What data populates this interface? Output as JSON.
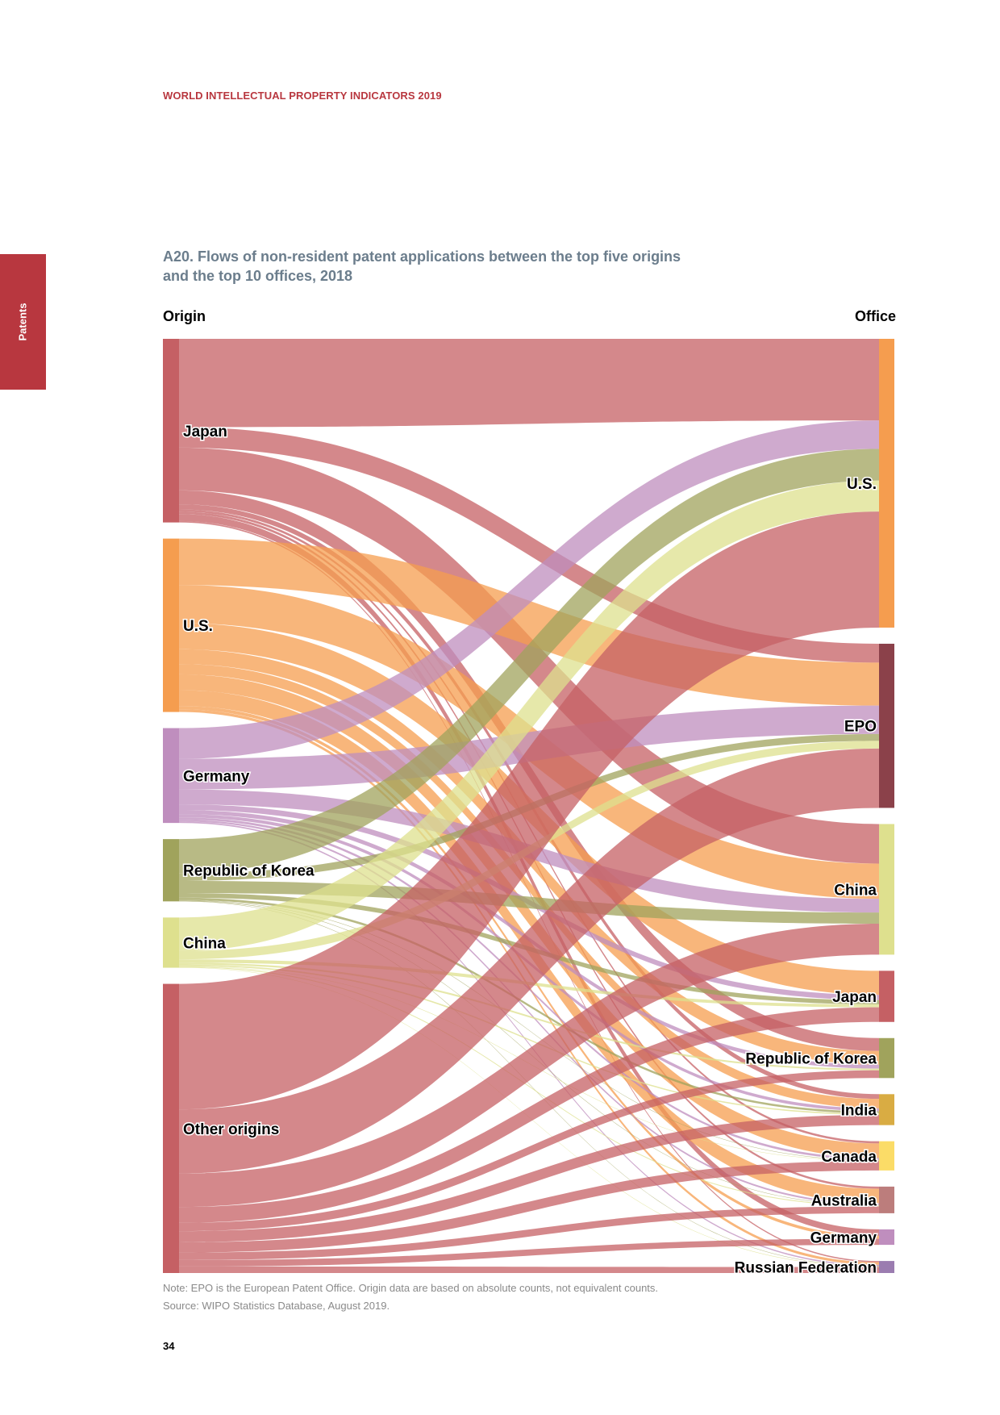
{
  "header": {
    "text": "WORLD INTELLECTUAL PROPERTY INDICATORS 2019"
  },
  "side_tab": {
    "label": "Patents"
  },
  "page_number": "34",
  "note": {
    "line1": "Note: EPO is the European Patent Office. Origin data are based on absolute counts, not equivalent counts.",
    "line2": "Source: WIPO Statistics Database, August 2019."
  },
  "chart_data": {
    "type": "sankey",
    "title": "A20. Flows of non-resident patent applications between the top five origins and the top 10 offices, 2018",
    "title_line1": "A20. Flows of non-resident patent applications between the top five origins",
    "title_line2": "and the top 10 offices, 2018",
    "left_heading": "Origin",
    "right_heading": "Office",
    "origins": [
      {
        "name": "Japan",
        "color": "#c56064"
      },
      {
        "name": "U.S.",
        "color": "#f59d4f"
      },
      {
        "name": "Germany",
        "color": "#bf8ebe"
      },
      {
        "name": "Republic of Korea",
        "color": "#a0a35c"
      },
      {
        "name": "China",
        "color": "#dee08e"
      },
      {
        "name": "Other origins",
        "color": "#c56064"
      }
    ],
    "offices": [
      {
        "name": "U.S.",
        "color": "#f59d4f"
      },
      {
        "name": "EPO",
        "color": "#8b414a"
      },
      {
        "name": "China",
        "color": "#dee08e"
      },
      {
        "name": "Japan",
        "color": "#c56064"
      },
      {
        "name": "Republic of Korea",
        "color": "#a0a35c"
      },
      {
        "name": "India",
        "color": "#d9ac43"
      },
      {
        "name": "Canada",
        "color": "#fbdc67"
      },
      {
        "name": "Australia",
        "color": "#bc7d7c"
      },
      {
        "name": "Germany",
        "color": "#bf8ebe"
      },
      {
        "name": "Russian Federation",
        "color": "#9b7cb0"
      }
    ],
    "flows": [
      {
        "from": "Japan",
        "to": "U.S.",
        "value": 95000
      },
      {
        "from": "Japan",
        "to": "EPO",
        "value": 22000
      },
      {
        "from": "Japan",
        "to": "China",
        "value": 46000
      },
      {
        "from": "Japan",
        "to": "Republic of Korea",
        "value": 15000
      },
      {
        "from": "Japan",
        "to": "India",
        "value": 5500
      },
      {
        "from": "Japan",
        "to": "Canada",
        "value": 2500
      },
      {
        "from": "Japan",
        "to": "Australia",
        "value": 2500
      },
      {
        "from": "Japan",
        "to": "Germany",
        "value": 7500
      },
      {
        "from": "Japan",
        "to": "Russian Federation",
        "value": 1500
      },
      {
        "from": "U.S.",
        "to": "EPO",
        "value": 50000
      },
      {
        "from": "U.S.",
        "to": "China",
        "value": 41000
      },
      {
        "from": "U.S.",
        "to": "Japan",
        "value": 28000
      },
      {
        "from": "U.S.",
        "to": "Republic of Korea",
        "value": 16000
      },
      {
        "from": "U.S.",
        "to": "India",
        "value": 11000
      },
      {
        "from": "U.S.",
        "to": "Canada",
        "value": 17000
      },
      {
        "from": "U.S.",
        "to": "Australia",
        "value": 17000
      },
      {
        "from": "U.S.",
        "to": "Germany",
        "value": 3500
      },
      {
        "from": "U.S.",
        "to": "Russian Federation",
        "value": 3000
      },
      {
        "from": "Germany",
        "to": "U.S.",
        "value": 33000
      },
      {
        "from": "Germany",
        "to": "EPO",
        "value": 33000
      },
      {
        "from": "Germany",
        "to": "China",
        "value": 16000
      },
      {
        "from": "Germany",
        "to": "Japan",
        "value": 6000
      },
      {
        "from": "Germany",
        "to": "Republic of Korea",
        "value": 4500
      },
      {
        "from": "Germany",
        "to": "India",
        "value": 3500
      },
      {
        "from": "Germany",
        "to": "Canada",
        "value": 2500
      },
      {
        "from": "Germany",
        "to": "Australia",
        "value": 2000
      },
      {
        "from": "Germany",
        "to": "Russian Federation",
        "value": 1500
      },
      {
        "from": "Republic of Korea",
        "to": "U.S.",
        "value": 37000
      },
      {
        "from": "Republic of Korea",
        "to": "EPO",
        "value": 8000
      },
      {
        "from": "Republic of Korea",
        "to": "China",
        "value": 13000
      },
      {
        "from": "Republic of Korea",
        "to": "Japan",
        "value": 5000
      },
      {
        "from": "Republic of Korea",
        "to": "India",
        "value": 2500
      },
      {
        "from": "Republic of Korea",
        "to": "Canada",
        "value": 500
      },
      {
        "from": "Republic of Korea",
        "to": "Australia",
        "value": 500
      },
      {
        "from": "Republic of Korea",
        "to": "Russian Federation",
        "value": 500
      },
      {
        "from": "China",
        "to": "U.S.",
        "value": 36000
      },
      {
        "from": "China",
        "to": "EPO",
        "value": 9000
      },
      {
        "from": "China",
        "to": "Japan",
        "value": 3500
      },
      {
        "from": "China",
        "to": "Republic of Korea",
        "value": 2000
      },
      {
        "from": "China",
        "to": "India",
        "value": 1500
      },
      {
        "from": "China",
        "to": "Canada",
        "value": 500
      },
      {
        "from": "China",
        "to": "Australia",
        "value": 1000
      },
      {
        "from": "China",
        "to": "Russian Federation",
        "value": 500
      },
      {
        "from": "Other origins",
        "to": "U.S.",
        "value": 135000
      },
      {
        "from": "Other origins",
        "to": "EPO",
        "value": 69000
      },
      {
        "from": "Other origins",
        "to": "China",
        "value": 36000
      },
      {
        "from": "Other origins",
        "to": "Japan",
        "value": 17000
      },
      {
        "from": "Other origins",
        "to": "Republic of Korea",
        "value": 9000
      },
      {
        "from": "Other origins",
        "to": "India",
        "value": 12000
      },
      {
        "from": "Other origins",
        "to": "Canada",
        "value": 11000
      },
      {
        "from": "Other origins",
        "to": "Australia",
        "value": 8000
      },
      {
        "from": "Other origins",
        "to": "Germany",
        "value": 7000
      },
      {
        "from": "Other origins",
        "to": "Russian Federation",
        "value": 7000
      }
    ]
  }
}
